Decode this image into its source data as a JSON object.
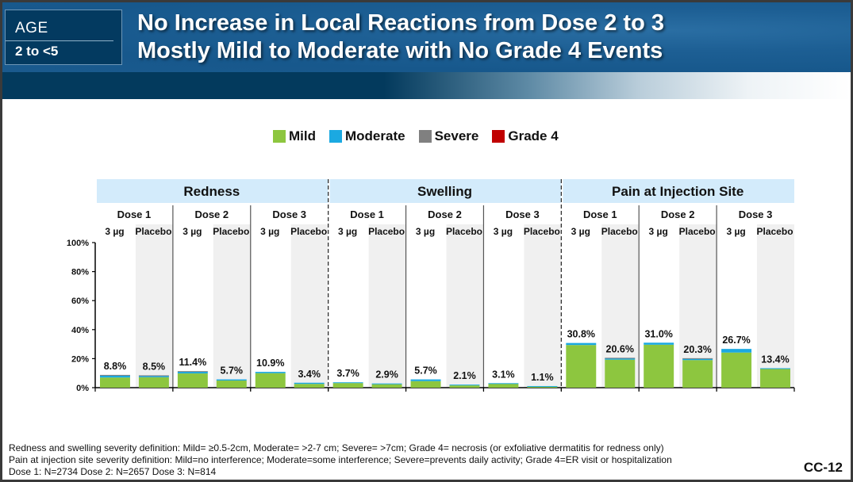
{
  "header": {
    "age_label": "AGE",
    "age_value": "2 to <5",
    "title_line1": "No Increase in Local Reactions from Dose 2 to 3",
    "title_line2": "Mostly Mild to Moderate with No Grade 4 Events"
  },
  "legend": [
    {
      "label": "Mild",
      "color": "#8dc63f"
    },
    {
      "label": "Moderate",
      "color": "#1ba9e1"
    },
    {
      "label": "Severe",
      "color": "#808080"
    },
    {
      "label": "Grade 4",
      "color": "#c00000"
    }
  ],
  "chart_data": {
    "type": "bar",
    "stacked": true,
    "title": "",
    "ylabel": "",
    "xlabel": "",
    "ylim": [
      0,
      100
    ],
    "yticks": [
      "0%",
      "20%",
      "40%",
      "60%",
      "80%",
      "100%"
    ],
    "legend_position": "top-center",
    "series_names": [
      "Mild",
      "Moderate",
      "Severe",
      "Grade 4"
    ],
    "groups": [
      {
        "name": "Redness",
        "doses": [
          {
            "name": "Dose 1",
            "bars": [
              {
                "arm": "3 µg",
                "total_label": "8.8%",
                "total": 8.8,
                "mild": 7.0,
                "moderate": 1.6,
                "severe": 0.2,
                "grade4": 0
              },
              {
                "arm": "Placebo",
                "total_label": "8.5%",
                "total": 8.5,
                "mild": 7.2,
                "moderate": 1.0,
                "severe": 0.3,
                "grade4": 0
              }
            ]
          },
          {
            "name": "Dose 2",
            "bars": [
              {
                "arm": "3 µg",
                "total_label": "11.4%",
                "total": 11.4,
                "mild": 9.8,
                "moderate": 1.2,
                "severe": 0.4,
                "grade4": 0
              },
              {
                "arm": "Placebo",
                "total_label": "5.7%",
                "total": 5.7,
                "mild": 4.9,
                "moderate": 0.8,
                "severe": 0,
                "grade4": 0
              }
            ]
          },
          {
            "name": "Dose 3",
            "bars": [
              {
                "arm": "3 µg",
                "total_label": "10.9%",
                "total": 10.9,
                "mild": 10.0,
                "moderate": 0.9,
                "severe": 0,
                "grade4": 0
              },
              {
                "arm": "Placebo",
                "total_label": "3.4%",
                "total": 3.4,
                "mild": 2.6,
                "moderate": 0.8,
                "severe": 0,
                "grade4": 0
              }
            ]
          }
        ]
      },
      {
        "name": "Swelling",
        "doses": [
          {
            "name": "Dose 1",
            "bars": [
              {
                "arm": "3 µg",
                "total_label": "3.7%",
                "total": 3.7,
                "mild": 3.2,
                "moderate": 0.5,
                "severe": 0,
                "grade4": 0
              },
              {
                "arm": "Placebo",
                "total_label": "2.9%",
                "total": 2.9,
                "mild": 2.4,
                "moderate": 0.5,
                "severe": 0,
                "grade4": 0
              }
            ]
          },
          {
            "name": "Dose 2",
            "bars": [
              {
                "arm": "3 µg",
                "total_label": "5.7%",
                "total": 5.7,
                "mild": 4.5,
                "moderate": 1.2,
                "severe": 0,
                "grade4": 0
              },
              {
                "arm": "Placebo",
                "total_label": "2.1%",
                "total": 2.1,
                "mild": 1.6,
                "moderate": 0.5,
                "severe": 0,
                "grade4": 0
              }
            ]
          },
          {
            "name": "Dose 3",
            "bars": [
              {
                "arm": "3 µg",
                "total_label": "3.1%",
                "total": 3.1,
                "mild": 2.8,
                "moderate": 0.3,
                "severe": 0,
                "grade4": 0
              },
              {
                "arm": "Placebo",
                "total_label": "1.1%",
                "total": 1.1,
                "mild": 1.0,
                "moderate": 0.1,
                "severe": 0,
                "grade4": 0
              }
            ]
          }
        ]
      },
      {
        "name": "Pain at Injection Site",
        "doses": [
          {
            "name": "Dose 1",
            "bars": [
              {
                "arm": "3 µg",
                "total_label": "30.8%",
                "total": 30.8,
                "mild": 29.4,
                "moderate": 1.4,
                "severe": 0,
                "grade4": 0
              },
              {
                "arm": "Placebo",
                "total_label": "20.6%",
                "total": 20.6,
                "mild": 19.3,
                "moderate": 1.0,
                "severe": 0.3,
                "grade4": 0
              }
            ]
          },
          {
            "name": "Dose 2",
            "bars": [
              {
                "arm": "3 µg",
                "total_label": "31.0%",
                "total": 31.0,
                "mild": 29.6,
                "moderate": 1.4,
                "severe": 0,
                "grade4": 0
              },
              {
                "arm": "Placebo",
                "total_label": "20.3%",
                "total": 20.3,
                "mild": 19.0,
                "moderate": 1.0,
                "severe": 0.3,
                "grade4": 0
              }
            ]
          },
          {
            "name": "Dose 3",
            "bars": [
              {
                "arm": "3 µg",
                "total_label": "26.7%",
                "total": 26.7,
                "mild": 24.2,
                "moderate": 2.5,
                "severe": 0,
                "grade4": 0
              },
              {
                "arm": "Placebo",
                "total_label": "13.4%",
                "total": 13.4,
                "mild": 13.0,
                "moderate": 0.4,
                "severe": 0,
                "grade4": 0
              }
            ]
          }
        ]
      }
    ]
  },
  "colors": {
    "mild": "#8dc63f",
    "moderate": "#1ba9e1",
    "severe": "#808080",
    "grade4": "#c00000",
    "group_header_bg": "#d3ebfb",
    "placebo_bg": "#f0f0f0"
  },
  "footer": {
    "line1": "Redness and swelling severity definition: Mild= ≥0.5-2cm, Moderate= >2-7 cm; Severe= >7cm; Grade 4= necrosis (or exfoliative dermatitis for redness only)",
    "line2": "Pain at injection site severity definition: Mild=no interference; Moderate=some interference; Severe=prevents daily activity; Grade 4=ER visit or hospitalization",
    "line3": "Dose 1: N=2734   Dose 2: N=2657  Dose 3: N=814",
    "page_id": "CC-12"
  }
}
